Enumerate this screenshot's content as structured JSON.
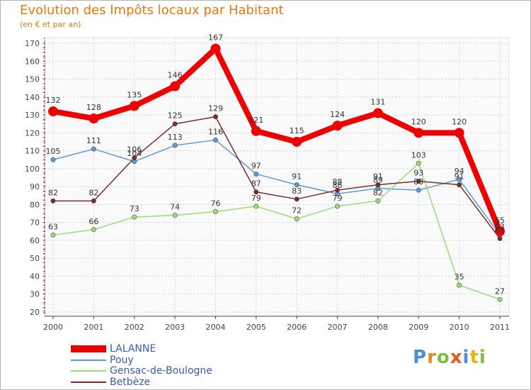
{
  "title": "Evolution des Impôts locaux par Habitant",
  "subtitle": "(en € et par an)",
  "chart_data": {
    "type": "line",
    "title": "Evolution des Impôts locaux par Habitant",
    "subtitle": "(en € et par an)",
    "xlabel": "",
    "ylabel": "",
    "x": [
      "2000",
      "2001",
      "2002",
      "2003",
      "2004",
      "2005",
      "2006",
      "2007",
      "2008",
      "2009",
      "2010",
      "2011"
    ],
    "yticks": [
      20,
      30,
      40,
      50,
      60,
      70,
      80,
      90,
      100,
      110,
      120,
      130,
      140,
      150,
      160,
      170
    ],
    "ylim": [
      20,
      170
    ],
    "grid": true,
    "legend_position": "bottom-left",
    "series": [
      {
        "name": "LALANNE",
        "color": "#ee0000",
        "emphasis": true,
        "values": [
          132,
          128,
          135,
          146,
          167,
          121,
          115,
          124,
          131,
          120,
          120,
          65
        ],
        "labels": [
          "132",
          "128",
          "135",
          "146",
          "167",
          "121",
          "115",
          "124",
          "131",
          "120",
          "120",
          "65"
        ]
      },
      {
        "name": "Pouy",
        "color": "#5b9bd5",
        "emphasis": false,
        "values": [
          105,
          111,
          104,
          113,
          116,
          97,
          91,
          86,
          89,
          88,
          94,
          63
        ],
        "labels": [
          "105",
          "111",
          "104",
          "113",
          "116",
          "97",
          "91",
          "86",
          "89",
          "88",
          "94",
          "63"
        ]
      },
      {
        "name": "Gensac-de-Boulogne",
        "color": "#99dd77",
        "emphasis": false,
        "values": [
          63,
          66,
          73,
          74,
          76,
          79,
          72,
          79,
          82,
          103,
          35,
          27
        ],
        "labels": [
          "63",
          "66",
          "73",
          "74",
          "76",
          "79",
          "72",
          "79",
          "82",
          "103",
          "35",
          "27"
        ]
      },
      {
        "name": "Betbèze",
        "color": "#7a2a2a",
        "emphasis": false,
        "values": [
          82,
          82,
          106,
          125,
          129,
          87,
          83,
          88,
          91,
          93,
          91,
          61
        ],
        "labels": [
          "82",
          "82",
          "106",
          "125",
          "129",
          "87",
          "83",
          "88",
          "91",
          "93",
          "91",
          "61"
        ]
      }
    ]
  },
  "logo": {
    "letters": [
      "P",
      "r",
      "o",
      "x",
      "i",
      "t",
      "i"
    ],
    "colors": [
      "#4a90d9",
      "#e08a1e",
      "#7cbf3c",
      "#e05a1e",
      "#4a90d9",
      "#e0b81e",
      "#7cbf3c"
    ]
  }
}
